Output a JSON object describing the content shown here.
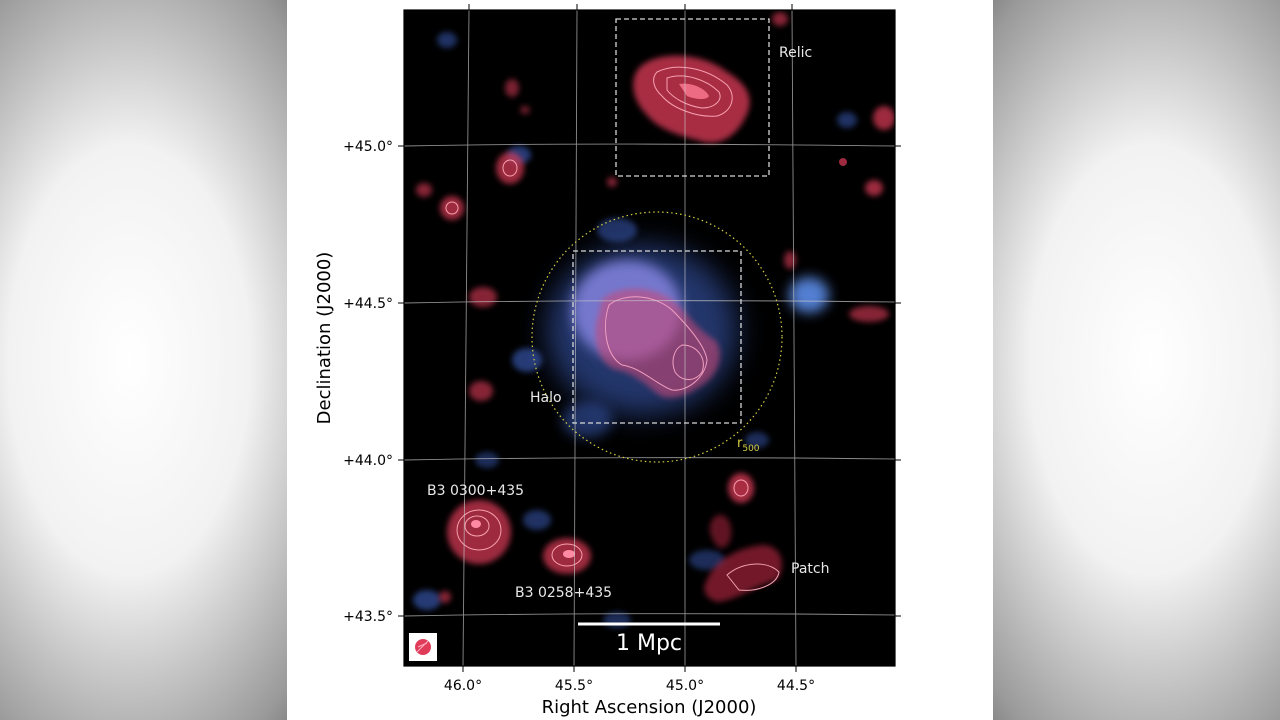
{
  "figure": {
    "xlabel": "Right Ascension (J2000)",
    "ylabel": "Declination (J2000)",
    "ra_ticks": [
      "46.0°",
      "45.5°",
      "45.0°",
      "44.5°"
    ],
    "dec_ticks": [
      "+45.0°",
      "+44.5°",
      "+44.0°",
      "+43.5°"
    ],
    "annotations": {
      "relic": "Relic",
      "halo": "Halo",
      "r500_main": "r",
      "r500_sub": "500",
      "patch": "Patch",
      "source1": "B3 0300+435",
      "source2": "B3 0258+435"
    },
    "scalebar_label": "1 Mpc",
    "colors": {
      "radio": "#e03c5a",
      "xray": "#4f7fd8",
      "r500_circle": "#d8d040",
      "background": "#000000"
    }
  }
}
